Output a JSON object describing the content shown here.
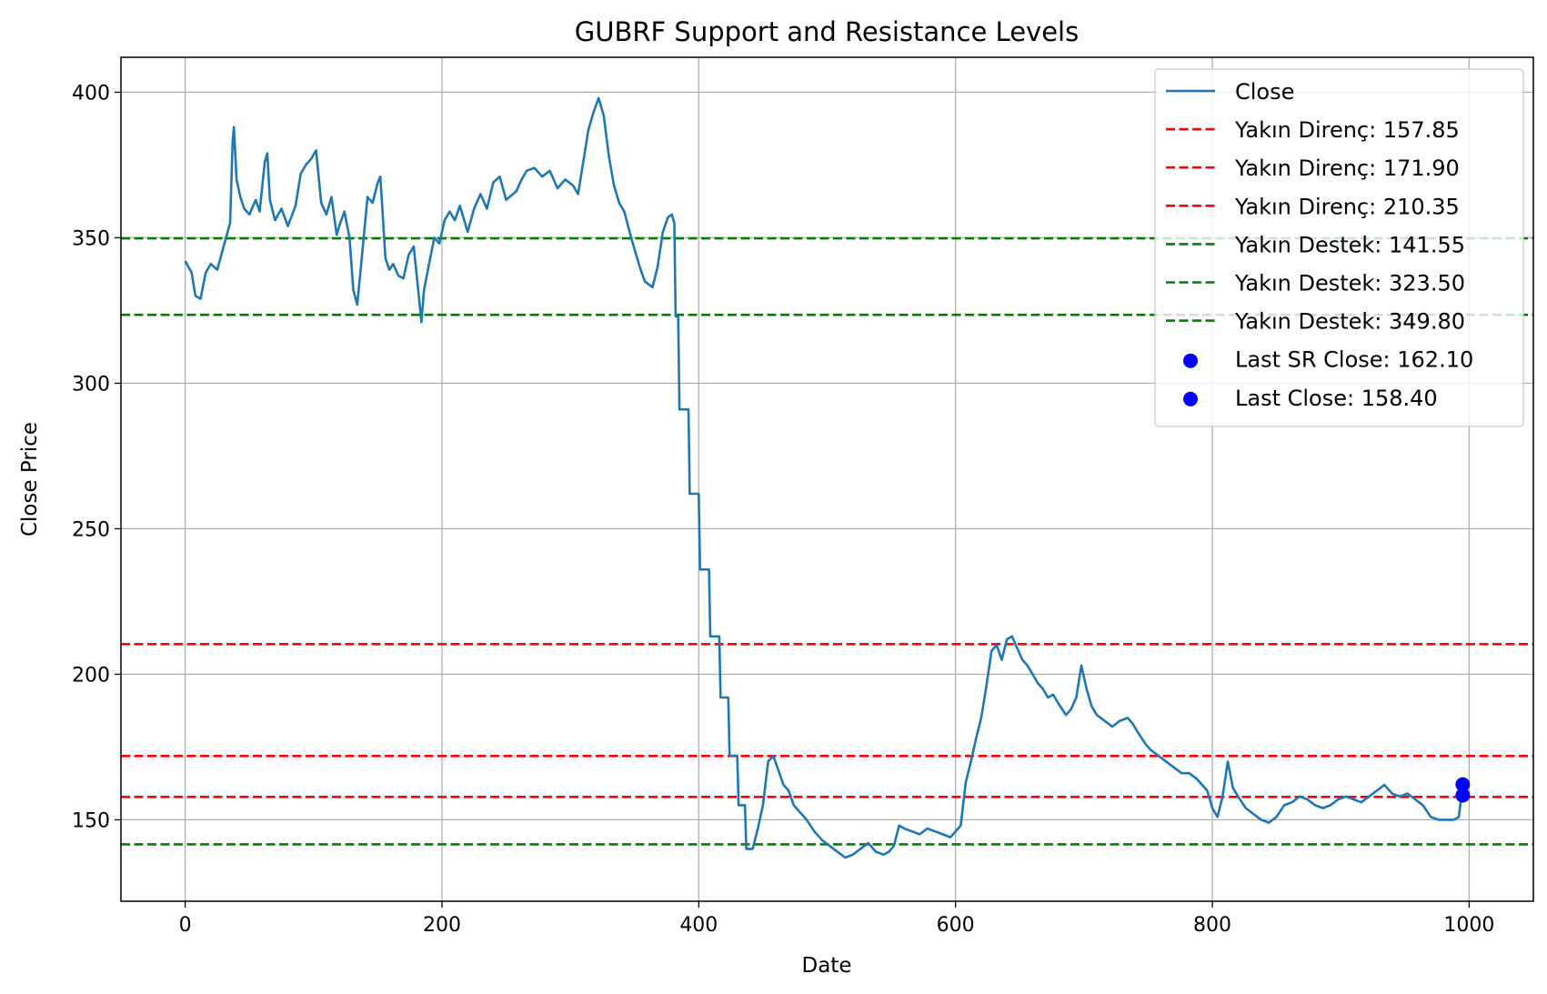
{
  "chart_data": {
    "type": "line",
    "title": "GUBRF Support and Resistance Levels",
    "xlabel": "Date",
    "ylabel": "Close Price",
    "xlim": [
      -50,
      1050
    ],
    "ylim": [
      122,
      412
    ],
    "x_ticks": [
      0,
      200,
      400,
      600,
      800,
      1000
    ],
    "y_ticks": [
      150,
      200,
      250,
      300,
      350,
      400
    ],
    "grid": true,
    "legend_position": "top-right",
    "series": [
      {
        "name": "Close",
        "color": "#1f77b4",
        "points": [
          [
            0,
            342
          ],
          [
            5,
            338
          ],
          [
            8,
            330
          ],
          [
            12,
            329
          ],
          [
            16,
            338
          ],
          [
            20,
            341
          ],
          [
            25,
            339
          ],
          [
            30,
            347
          ],
          [
            35,
            355
          ],
          [
            37,
            383
          ],
          [
            38,
            388
          ],
          [
            40,
            370
          ],
          [
            43,
            364
          ],
          [
            46,
            360
          ],
          [
            50,
            358
          ],
          [
            55,
            363
          ],
          [
            58,
            359
          ],
          [
            62,
            376
          ],
          [
            64,
            379
          ],
          [
            66,
            363
          ],
          [
            70,
            356
          ],
          [
            75,
            360
          ],
          [
            80,
            354
          ],
          [
            86,
            361
          ],
          [
            90,
            372
          ],
          [
            94,
            375
          ],
          [
            98,
            377
          ],
          [
            102,
            380
          ],
          [
            106,
            362
          ],
          [
            110,
            358
          ],
          [
            114,
            364
          ],
          [
            118,
            351
          ],
          [
            120,
            354
          ],
          [
            124,
            359
          ],
          [
            128,
            350
          ],
          [
            131,
            332
          ],
          [
            134,
            327
          ],
          [
            138,
            345
          ],
          [
            142,
            364
          ],
          [
            146,
            362
          ],
          [
            150,
            369
          ],
          [
            152,
            371
          ],
          [
            156,
            343
          ],
          [
            159,
            339
          ],
          [
            162,
            341
          ],
          [
            166,
            337
          ],
          [
            170,
            336
          ],
          [
            174,
            344
          ],
          [
            178,
            347
          ],
          [
            182,
            330
          ],
          [
            184,
            321
          ],
          [
            186,
            332
          ],
          [
            190,
            341
          ],
          [
            194,
            350
          ],
          [
            198,
            348
          ],
          [
            202,
            356
          ],
          [
            206,
            359
          ],
          [
            210,
            356
          ],
          [
            214,
            361
          ],
          [
            220,
            352
          ],
          [
            225,
            360
          ],
          [
            230,
            365
          ],
          [
            235,
            360
          ],
          [
            240,
            369
          ],
          [
            245,
            371
          ],
          [
            250,
            363
          ],
          [
            258,
            366
          ],
          [
            262,
            370
          ],
          [
            266,
            373
          ],
          [
            272,
            374
          ],
          [
            278,
            371
          ],
          [
            284,
            373
          ],
          [
            290,
            367
          ],
          [
            296,
            370
          ],
          [
            302,
            368
          ],
          [
            306,
            365
          ],
          [
            310,
            376
          ],
          [
            314,
            387
          ],
          [
            318,
            393
          ],
          [
            322,
            398
          ],
          [
            326,
            392
          ],
          [
            330,
            378
          ],
          [
            334,
            368
          ],
          [
            338,
            362
          ],
          [
            342,
            359
          ],
          [
            348,
            349
          ],
          [
            354,
            340
          ],
          [
            358,
            335
          ],
          [
            364,
            333
          ],
          [
            368,
            340
          ],
          [
            372,
            352
          ],
          [
            376,
            357
          ],
          [
            379,
            358
          ],
          [
            381,
            355
          ],
          [
            382,
            323
          ],
          [
            384,
            323
          ],
          [
            385,
            291
          ],
          [
            392,
            291
          ],
          [
            393,
            262
          ],
          [
            400,
            262
          ],
          [
            401,
            236
          ],
          [
            408,
            236
          ],
          [
            409,
            213
          ],
          [
            416,
            213
          ],
          [
            417,
            192
          ],
          [
            423,
            192
          ],
          [
            424,
            172
          ],
          [
            430,
            172
          ],
          [
            431,
            155
          ],
          [
            436,
            155
          ],
          [
            437,
            140
          ],
          [
            442,
            140
          ],
          [
            446,
            147
          ],
          [
            450,
            155
          ],
          [
            454,
            170
          ],
          [
            458,
            172
          ],
          [
            462,
            167
          ],
          [
            466,
            162
          ],
          [
            470,
            160
          ],
          [
            474,
            155
          ],
          [
            478,
            153
          ],
          [
            484,
            150
          ],
          [
            490,
            146
          ],
          [
            496,
            143
          ],
          [
            502,
            141
          ],
          [
            508,
            139
          ],
          [
            514,
            137
          ],
          [
            520,
            138
          ],
          [
            526,
            140
          ],
          [
            532,
            142
          ],
          [
            538,
            139
          ],
          [
            544,
            138
          ],
          [
            548,
            139
          ],
          [
            552,
            141
          ],
          [
            556,
            148
          ],
          [
            560,
            147
          ],
          [
            566,
            146
          ],
          [
            572,
            145
          ],
          [
            578,
            147
          ],
          [
            584,
            146
          ],
          [
            590,
            145
          ],
          [
            596,
            144
          ],
          [
            600,
            146
          ],
          [
            604,
            148
          ],
          [
            608,
            163
          ],
          [
            612,
            170
          ],
          [
            616,
            178
          ],
          [
            620,
            185
          ],
          [
            624,
            196
          ],
          [
            628,
            208
          ],
          [
            632,
            210
          ],
          [
            636,
            205
          ],
          [
            640,
            212
          ],
          [
            644,
            213
          ],
          [
            648,
            209
          ],
          [
            652,
            205
          ],
          [
            656,
            203
          ],
          [
            660,
            200
          ],
          [
            664,
            197
          ],
          [
            668,
            195
          ],
          [
            672,
            192
          ],
          [
            676,
            193
          ],
          [
            680,
            190
          ],
          [
            686,
            186
          ],
          [
            690,
            188
          ],
          [
            694,
            192
          ],
          [
            698,
            203
          ],
          [
            702,
            195
          ],
          [
            706,
            189
          ],
          [
            710,
            186
          ],
          [
            716,
            184
          ],
          [
            722,
            182
          ],
          [
            728,
            184
          ],
          [
            734,
            185
          ],
          [
            738,
            183
          ],
          [
            742,
            180
          ],
          [
            748,
            176
          ],
          [
            752,
            174
          ],
          [
            758,
            172
          ],
          [
            764,
            170
          ],
          [
            770,
            168
          ],
          [
            776,
            166
          ],
          [
            782,
            166
          ],
          [
            788,
            164
          ],
          [
            792,
            162
          ],
          [
            796,
            160
          ],
          [
            800,
            154
          ],
          [
            804,
            151
          ],
          [
            808,
            158
          ],
          [
            812,
            170
          ],
          [
            816,
            161
          ],
          [
            820,
            158
          ],
          [
            826,
            154
          ],
          [
            832,
            152
          ],
          [
            838,
            150
          ],
          [
            844,
            149
          ],
          [
            850,
            151
          ],
          [
            856,
            155
          ],
          [
            862,
            156
          ],
          [
            868,
            158
          ],
          [
            874,
            157
          ],
          [
            880,
            155
          ],
          [
            886,
            154
          ],
          [
            892,
            155
          ],
          [
            898,
            157
          ],
          [
            904,
            158
          ],
          [
            910,
            157
          ],
          [
            916,
            156
          ],
          [
            922,
            158
          ],
          [
            928,
            160
          ],
          [
            934,
            162
          ],
          [
            940,
            159
          ],
          [
            946,
            158
          ],
          [
            952,
            159
          ],
          [
            958,
            157
          ],
          [
            964,
            155
          ],
          [
            970,
            151
          ],
          [
            976,
            150
          ],
          [
            982,
            150
          ],
          [
            988,
            150
          ],
          [
            992,
            151
          ],
          [
            995,
            162
          ]
        ]
      }
    ],
    "hlines": [
      {
        "label": "Yakın Direnç: 157.85",
        "y": 157.85,
        "color": "#ff0000",
        "style": "dashed"
      },
      {
        "label": "Yakın Direnç: 171.90",
        "y": 171.9,
        "color": "#ff0000",
        "style": "dashed"
      },
      {
        "label": "Yakın Direnç: 210.35",
        "y": 210.35,
        "color": "#ff0000",
        "style": "dashed"
      },
      {
        "label": "Yakın Destek: 141.55",
        "y": 141.55,
        "color": "#008000",
        "style": "dashed"
      },
      {
        "label": "Yakın Destek: 323.50",
        "y": 323.5,
        "color": "#008000",
        "style": "dashed"
      },
      {
        "label": "Yakın Destek: 349.80",
        "y": 349.8,
        "color": "#008000",
        "style": "dashed"
      }
    ],
    "markers": [
      {
        "label": "Last SR Close: 162.10",
        "x": 995,
        "y": 162.1,
        "color": "#0000ff"
      },
      {
        "label": "Last Close: 158.40",
        "x": 995,
        "y": 158.4,
        "color": "#0000ff"
      }
    ]
  }
}
